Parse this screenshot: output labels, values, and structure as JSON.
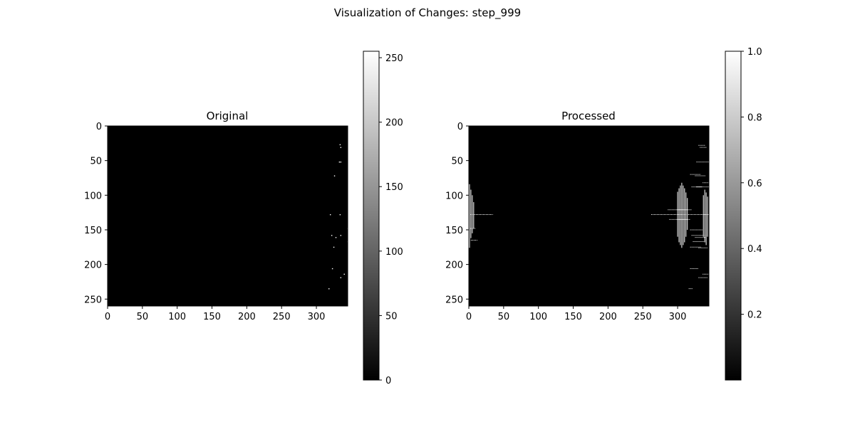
{
  "figure": {
    "suptitle": "Visualization of Changes: step_999"
  },
  "chart_data": [
    {
      "type": "heatmap",
      "title": "Original",
      "colormap": "gray",
      "background_color": "#000000",
      "xlim": [
        0,
        345
      ],
      "ylim": [
        260,
        0
      ],
      "xticks": [
        0,
        50,
        100,
        150,
        200,
        250,
        300
      ],
      "yticks": [
        0,
        50,
        100,
        150,
        200,
        250
      ],
      "colorbar": {
        "min": 0,
        "max": 255,
        "ticks": [
          0,
          50,
          100,
          150,
          200,
          250
        ]
      },
      "bright_pixels": [
        [
          334,
          27
        ],
        [
          335,
          31
        ],
        [
          333,
          52
        ],
        [
          335,
          52
        ],
        [
          326,
          72
        ],
        [
          320,
          128
        ],
        [
          334,
          128
        ],
        [
          345,
          148
        ],
        [
          322,
          158
        ],
        [
          335,
          158
        ],
        [
          328,
          161
        ],
        [
          325,
          175
        ],
        [
          345,
          167
        ],
        [
          323,
          206
        ],
        [
          340,
          214
        ],
        [
          335,
          219
        ],
        [
          318,
          235
        ]
      ]
    },
    {
      "type": "heatmap",
      "title": "Processed",
      "colormap": "gray",
      "background_color": "#000000",
      "xlim": [
        0,
        345
      ],
      "ylim": [
        260,
        0
      ],
      "xticks": [
        0,
        50,
        100,
        150,
        200,
        250,
        300
      ],
      "yticks": [
        0,
        50,
        100,
        150,
        200,
        250
      ],
      "colorbar": {
        "min": 0,
        "max": 1.0,
        "ticks": [
          0.2,
          0.4,
          0.6,
          0.8,
          1.0
        ]
      },
      "vertical_segments": [
        [
          1,
          84,
          176
        ],
        [
          3,
          92,
          162
        ],
        [
          5,
          100,
          155
        ],
        [
          7,
          110,
          148
        ],
        [
          300,
          95,
          160
        ],
        [
          302,
          90,
          168
        ],
        [
          304,
          86,
          172
        ],
        [
          306,
          82,
          176
        ],
        [
          308,
          86,
          172
        ],
        [
          310,
          90,
          168
        ],
        [
          312,
          96,
          160
        ],
        [
          314,
          104,
          150
        ],
        [
          337,
          100,
          160
        ],
        [
          339,
          92,
          168
        ],
        [
          341,
          96,
          172
        ],
        [
          343,
          102,
          160
        ]
      ],
      "horizontal_segments": [
        [
          0,
          35,
          128
        ],
        [
          262,
          345,
          128
        ],
        [
          286,
          320,
          121
        ],
        [
          288,
          318,
          135
        ],
        [
          330,
          340,
          28
        ],
        [
          332,
          342,
          31
        ],
        [
          327,
          345,
          52
        ],
        [
          318,
          333,
          70
        ],
        [
          325,
          340,
          72
        ],
        [
          320,
          335,
          88
        ],
        [
          327,
          345,
          88
        ],
        [
          336,
          345,
          82
        ],
        [
          318,
          336,
          150
        ],
        [
          320,
          342,
          158
        ],
        [
          325,
          340,
          161
        ],
        [
          322,
          340,
          167
        ],
        [
          318,
          334,
          175
        ],
        [
          330,
          343,
          176
        ],
        [
          318,
          330,
          206
        ],
        [
          336,
          345,
          214
        ],
        [
          330,
          343,
          219
        ],
        [
          316,
          322,
          235
        ],
        [
          2,
          10,
          148
        ],
        [
          3,
          12,
          165
        ]
      ]
    }
  ]
}
